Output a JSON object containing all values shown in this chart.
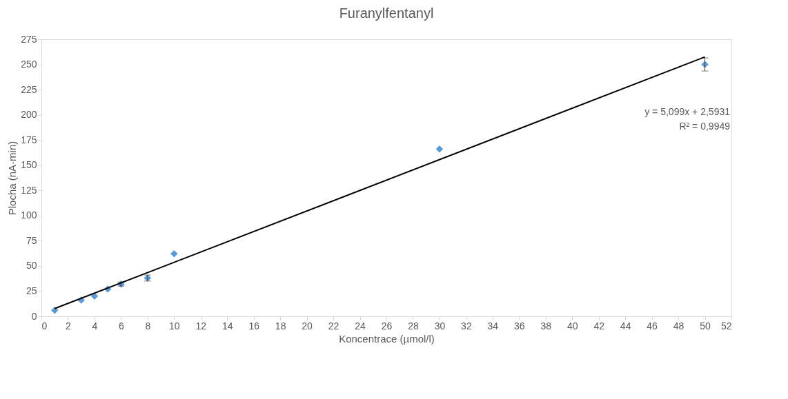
{
  "chart_data": {
    "type": "scatter",
    "title": "Furanylfentanyl",
    "xlabel": "Koncentrace (µmol/l)",
    "ylabel": "Plocha (nA·min)",
    "xlim": [
      0,
      52
    ],
    "xticks": [
      0,
      2,
      4,
      6,
      8,
      10,
      12,
      14,
      16,
      18,
      20,
      22,
      24,
      26,
      28,
      30,
      32,
      34,
      36,
      38,
      40,
      42,
      44,
      46,
      48,
      50,
      52
    ],
    "ylim": [
      0,
      275
    ],
    "yticks": [
      0,
      25,
      50,
      75,
      100,
      125,
      150,
      175,
      200,
      225,
      250,
      275
    ],
    "grid": false,
    "series": [
      {
        "marker": "diamond",
        "color": "#5b9bd5",
        "x": [
          1,
          3,
          4,
          5,
          6,
          8,
          10,
          30,
          50
        ],
        "values": [
          6,
          16,
          20,
          27,
          32,
          38,
          62,
          166,
          250
        ],
        "errors": [
          null,
          null,
          null,
          null,
          2,
          3,
          null,
          null,
          6.5
        ]
      },
      {
        "type": "line",
        "color": "#000000",
        "line_style": "solid",
        "x": [
          1,
          50
        ],
        "values": [
          7.7,
          257.5
        ]
      }
    ],
    "annotations": [
      "y = 5,099x + 2,5931",
      "R² = 0,9949"
    ]
  }
}
